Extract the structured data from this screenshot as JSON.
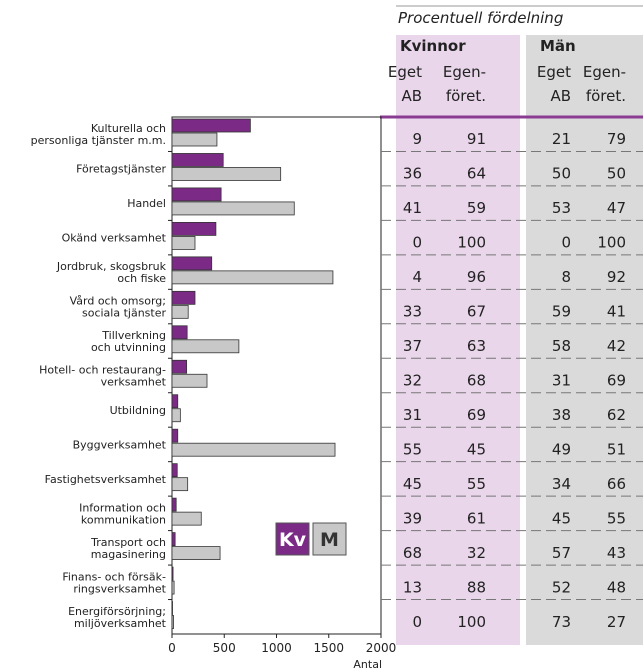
{
  "chart_data": {
    "type": "hbar",
    "categories": [
      "Kulturella och\npersonliga tjänster m.m.",
      "Företagstjänster",
      "Handel",
      "Okänd verksamhet",
      "Jordbruk, skogsbruk\noch fiske",
      "Vård och omsorg;\nsociala tjänster",
      "Tillverkning\noch utvinning",
      "Hotell- och restaurang-\nverksamhet",
      "Utbildning",
      "Byggverksamhet",
      "Fastighetsverksamhet",
      "Information och\nkommunikation",
      "Transport och\nmagasinering",
      "Finans- och försäk-\nringsverksamhet",
      "Energiförsörjning;\nmiljöverksamhet"
    ],
    "series": [
      {
        "name": "Kv",
        "color": "#7b2b86",
        "values": [
          750,
          490,
          470,
          420,
          380,
          220,
          145,
          140,
          55,
          55,
          50,
          40,
          30,
          10,
          5
        ]
      },
      {
        "name": "M",
        "color": "#c8c8c8",
        "values": [
          430,
          1040,
          1170,
          220,
          1540,
          155,
          640,
          335,
          80,
          1560,
          150,
          280,
          460,
          20,
          15
        ]
      }
    ],
    "xlim": [
      0,
      2000
    ],
    "xticks": [
      0,
      500,
      1000,
      1500,
      2000
    ],
    "xlabel": "Antal"
  },
  "table": {
    "title": "Procentuell fördelning",
    "groups": [
      "Kvinnor",
      "Män"
    ],
    "columns": [
      "Eget\nAB",
      "Egen-\nföret.",
      "Eget\nAB",
      "Egen-\nföret."
    ],
    "rows": [
      [
        9,
        91,
        21,
        79
      ],
      [
        36,
        64,
        50,
        50
      ],
      [
        41,
        59,
        53,
        47
      ],
      [
        0,
        100,
        0,
        100
      ],
      [
        4,
        96,
        8,
        92
      ],
      [
        33,
        67,
        59,
        41
      ],
      [
        37,
        63,
        58,
        42
      ],
      [
        32,
        68,
        31,
        69
      ],
      [
        31,
        69,
        38,
        62
      ],
      [
        55,
        45,
        49,
        51
      ],
      [
        45,
        55,
        34,
        66
      ],
      [
        39,
        61,
        45,
        55
      ],
      [
        68,
        32,
        57,
        43
      ],
      [
        13,
        88,
        52,
        48
      ],
      [
        0,
        100,
        73,
        27
      ]
    ]
  }
}
